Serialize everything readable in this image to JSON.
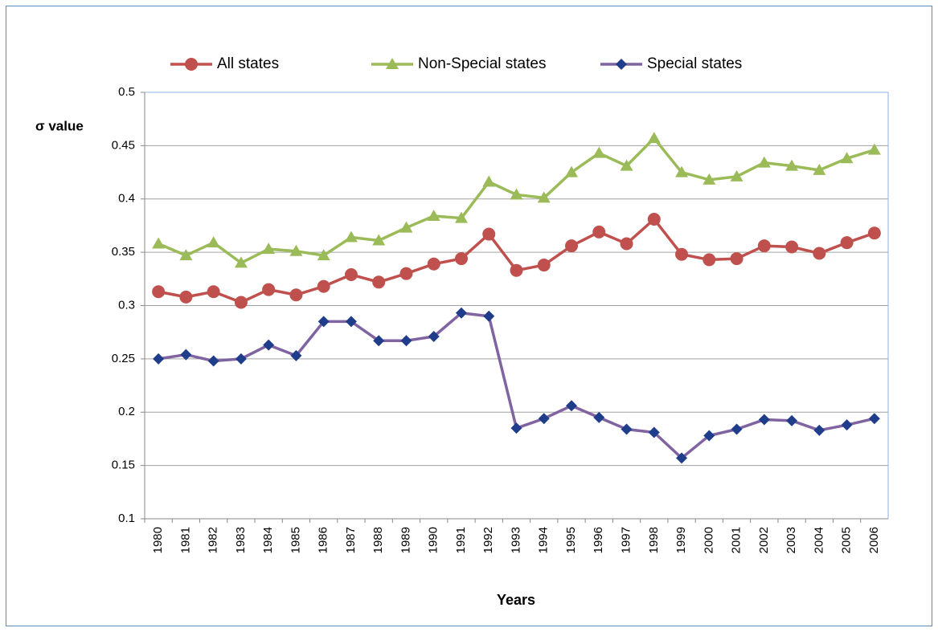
{
  "chart_data": {
    "type": "line",
    "y_label": "σ value",
    "x_label": "Years",
    "categories": [
      "1980",
      "1981",
      "1982",
      "1983",
      "1984",
      "1985",
      "1986",
      "1987",
      "1988",
      "1989",
      "1990",
      "1991",
      "1992",
      "1993",
      "1994",
      "1995",
      "1996",
      "1997",
      "1998",
      "1999",
      "2000",
      "2001",
      "2002",
      "2003",
      "2004",
      "2005",
      "2006"
    ],
    "ylim": [
      0.1,
      0.5
    ],
    "yticks": [
      0.1,
      0.15,
      0.2,
      0.25,
      0.3,
      0.35,
      0.4,
      0.45,
      0.5
    ],
    "grid": true,
    "legend": "top",
    "series": [
      {
        "name": "All states",
        "color": "#c0504d",
        "marker_color": "#c0504d",
        "marker": "circle",
        "values": [
          0.313,
          0.308,
          0.313,
          0.303,
          0.315,
          0.31,
          0.318,
          0.329,
          0.322,
          0.33,
          0.339,
          0.344,
          0.367,
          0.333,
          0.338,
          0.356,
          0.369,
          0.358,
          0.381,
          0.348,
          0.343,
          0.344,
          0.356,
          0.355,
          0.349,
          0.359,
          0.368
        ]
      },
      {
        "name": "Non-Special states",
        "color": "#9bbb59",
        "marker_color": "#9bbb59",
        "marker": "triangle",
        "values": [
          0.358,
          0.347,
          0.359,
          0.34,
          0.353,
          0.351,
          0.347,
          0.364,
          0.361,
          0.373,
          0.384,
          0.382,
          0.416,
          0.404,
          0.401,
          0.425,
          0.443,
          0.431,
          0.457,
          0.425,
          0.418,
          0.421,
          0.434,
          0.431,
          0.427,
          0.438,
          0.446
        ]
      },
      {
        "name": "Special states",
        "color": "#8064a2",
        "marker_color": "#1f3d8a",
        "marker": "diamond",
        "values": [
          0.25,
          0.254,
          0.248,
          0.25,
          0.263,
          0.253,
          0.285,
          0.285,
          0.267,
          0.267,
          0.271,
          0.293,
          0.29,
          0.185,
          0.194,
          0.206,
          0.195,
          0.184,
          0.181,
          0.157,
          0.178,
          0.184,
          0.193,
          0.192,
          0.183,
          0.188,
          0.194
        ]
      }
    ]
  }
}
